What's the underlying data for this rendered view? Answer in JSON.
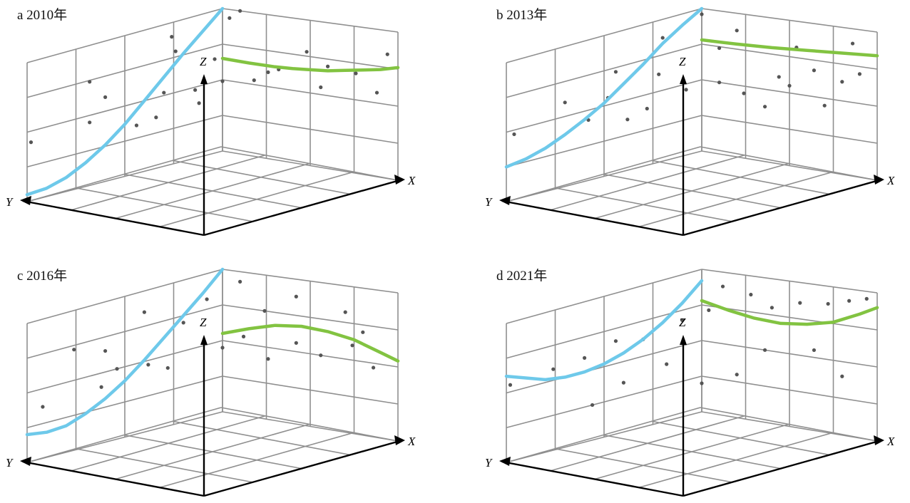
{
  "chart_data": [
    {
      "type": "scatter",
      "panel": "a",
      "title": "a  2010年",
      "axes": {
        "x": "X",
        "y": "Y",
        "z": "Z"
      },
      "left_curve_color": "#6ec9ea",
      "right_curve_color": "#82c341",
      "left_curve": [
        [
          0.0,
          0.05
        ],
        [
          0.1,
          0.06
        ],
        [
          0.2,
          0.1
        ],
        [
          0.3,
          0.17
        ],
        [
          0.4,
          0.26
        ],
        [
          0.5,
          0.37
        ],
        [
          0.6,
          0.5
        ],
        [
          0.7,
          0.63
        ],
        [
          0.8,
          0.76
        ],
        [
          0.9,
          0.88
        ],
        [
          1.0,
          1.0
        ]
      ],
      "right_curve": [
        [
          0.0,
          0.65
        ],
        [
          0.15,
          0.645
        ],
        [
          0.3,
          0.645
        ],
        [
          0.4,
          0.65
        ],
        [
          0.5,
          0.66
        ],
        [
          0.6,
          0.67
        ],
        [
          0.7,
          0.69
        ],
        [
          0.8,
          0.71
        ],
        [
          0.9,
          0.73
        ],
        [
          1.0,
          0.76
        ]
      ],
      "points": [
        [
          0.28,
          0.34
        ],
        [
          0.33,
          0.36
        ],
        [
          0.44,
          0.38
        ],
        [
          0.01,
          0.42
        ],
        [
          0.16,
          0.45
        ],
        [
          0.35,
          0.52
        ],
        [
          0.43,
          0.48
        ],
        [
          0.5,
          0.49
        ],
        [
          0.59,
          0.53
        ],
        [
          0.78,
          0.55
        ],
        [
          0.66,
          0.63
        ],
        [
          0.94,
          0.57
        ],
        [
          0.88,
          0.68
        ],
        [
          0.48,
          0.66
        ],
        [
          0.8,
          0.7
        ],
        [
          0.16,
          0.74
        ],
        [
          0.38,
          0.79
        ],
        [
          0.37,
          0.9
        ],
        [
          0.52,
          0.94
        ],
        [
          0.55,
          1.0
        ],
        [
          0.74,
          0.78
        ],
        [
          0.97,
          0.84
        ],
        [
          0.63,
          0.6
        ],
        [
          0.2,
          0.6
        ]
      ]
    },
    {
      "type": "scatter",
      "panel": "b",
      "title": "b  2013年",
      "axes": {
        "x": "X",
        "y": "Y",
        "z": "Z"
      },
      "left_curve_color": "#6ec9ea",
      "right_curve_color": "#82c341",
      "left_curve": [
        [
          0.0,
          0.25
        ],
        [
          0.1,
          0.27
        ],
        [
          0.2,
          0.31
        ],
        [
          0.3,
          0.37
        ],
        [
          0.4,
          0.44
        ],
        [
          0.5,
          0.52
        ],
        [
          0.6,
          0.62
        ],
        [
          0.7,
          0.72
        ],
        [
          0.8,
          0.83
        ],
        [
          0.9,
          0.92
        ],
        [
          1.0,
          1.0
        ]
      ],
      "right_curve": [
        [
          0.0,
          0.78
        ],
        [
          0.2,
          0.785
        ],
        [
          0.4,
          0.795
        ],
        [
          0.6,
          0.81
        ],
        [
          0.8,
          0.825
        ],
        [
          1.0,
          0.84
        ]
      ],
      "points": [
        [
          0.02,
          0.47
        ],
        [
          0.21,
          0.43
        ],
        [
          0.26,
          0.55
        ],
        [
          0.31,
          0.36
        ],
        [
          0.36,
          0.4
        ],
        [
          0.39,
          0.62
        ],
        [
          0.46,
          0.46
        ],
        [
          0.55,
          0.5
        ],
        [
          0.62,
          0.45
        ],
        [
          0.68,
          0.38
        ],
        [
          0.72,
          0.6
        ],
        [
          0.75,
          0.55
        ],
        [
          0.82,
          0.68
        ],
        [
          0.9,
          0.63
        ],
        [
          0.95,
          0.7
        ],
        [
          0.55,
          0.74
        ],
        [
          0.6,
          0.88
        ],
        [
          0.4,
          0.87
        ],
        [
          0.5,
          0.96
        ],
        [
          0.77,
          0.82
        ],
        [
          0.93,
          0.9
        ],
        [
          0.28,
          0.72
        ],
        [
          0.15,
          0.6
        ],
        [
          0.85,
          0.45
        ]
      ]
    },
    {
      "type": "scatter",
      "panel": "c",
      "title": "c  2016年",
      "axes": {
        "x": "X",
        "y": "Y",
        "z": "Z"
      },
      "left_curve_color": "#6ec9ea",
      "right_curve_color": "#82c341",
      "left_curve": [
        [
          0.0,
          0.2
        ],
        [
          0.1,
          0.18
        ],
        [
          0.2,
          0.19
        ],
        [
          0.3,
          0.24
        ],
        [
          0.4,
          0.31
        ],
        [
          0.5,
          0.4
        ],
        [
          0.6,
          0.51
        ],
        [
          0.7,
          0.63
        ],
        [
          0.8,
          0.75
        ],
        [
          0.9,
          0.87
        ],
        [
          1.0,
          1.0
        ]
      ],
      "right_curve": [
        [
          0.0,
          0.55
        ],
        [
          0.15,
          0.61
        ],
        [
          0.3,
          0.66
        ],
        [
          0.45,
          0.68
        ],
        [
          0.6,
          0.67
        ],
        [
          0.75,
          0.64
        ],
        [
          0.9,
          0.58
        ],
        [
          1.0,
          0.54
        ]
      ],
      "points": [
        [
          0.04,
          0.37
        ],
        [
          0.19,
          0.4
        ],
        [
          0.23,
          0.5
        ],
        [
          0.31,
          0.47
        ],
        [
          0.36,
          0.41
        ],
        [
          0.5,
          0.45
        ],
        [
          0.56,
          0.55
        ],
        [
          0.63,
          0.42
        ],
        [
          0.71,
          0.56
        ],
        [
          0.78,
          0.5
        ],
        [
          0.87,
          0.6
        ],
        [
          0.93,
          0.47
        ],
        [
          0.2,
          0.65
        ],
        [
          0.4,
          0.7
        ],
        [
          0.46,
          0.82
        ],
        [
          0.55,
          0.93
        ],
        [
          0.71,
          0.88
        ],
        [
          0.85,
          0.82
        ],
        [
          0.62,
          0.75
        ],
        [
          0.3,
          0.85
        ],
        [
          0.12,
          0.72
        ],
        [
          0.9,
          0.7
        ]
      ]
    },
    {
      "type": "scatter",
      "panel": "d",
      "title": "d  2021年",
      "axes": {
        "x": "X",
        "y": "Y",
        "z": "Z"
      },
      "left_curve_color": "#6ec9ea",
      "right_curve_color": "#82c341",
      "left_curve": [
        [
          0.0,
          0.62
        ],
        [
          0.1,
          0.57
        ],
        [
          0.2,
          0.52
        ],
        [
          0.3,
          0.5
        ],
        [
          0.4,
          0.5
        ],
        [
          0.5,
          0.52
        ],
        [
          0.6,
          0.56
        ],
        [
          0.7,
          0.62
        ],
        [
          0.8,
          0.7
        ],
        [
          0.9,
          0.8
        ],
        [
          1.0,
          0.92
        ]
      ],
      "right_curve": [
        [
          0.0,
          0.78
        ],
        [
          0.15,
          0.74
        ],
        [
          0.3,
          0.71
        ],
        [
          0.45,
          0.7
        ],
        [
          0.6,
          0.72
        ],
        [
          0.75,
          0.76
        ],
        [
          0.9,
          0.84
        ],
        [
          1.0,
          0.9
        ]
      ],
      "points": [
        [
          0.01,
          0.55
        ],
        [
          0.12,
          0.58
        ],
        [
          0.2,
          0.6
        ],
        [
          0.28,
          0.66
        ],
        [
          0.35,
          0.62
        ],
        [
          0.45,
          0.68
        ],
        [
          0.52,
          0.72
        ],
        [
          0.56,
          0.9
        ],
        [
          0.64,
          0.87
        ],
        [
          0.7,
          0.8
        ],
        [
          0.78,
          0.86
        ],
        [
          0.86,
          0.88
        ],
        [
          0.92,
          0.92
        ],
        [
          0.97,
          0.95
        ],
        [
          0.3,
          0.35
        ],
        [
          0.6,
          0.3
        ],
        [
          0.41,
          0.4
        ],
        [
          0.68,
          0.5
        ],
        [
          0.82,
          0.55
        ],
        [
          0.5,
          0.2
        ],
        [
          0.22,
          0.25
        ],
        [
          0.9,
          0.4
        ]
      ]
    }
  ]
}
